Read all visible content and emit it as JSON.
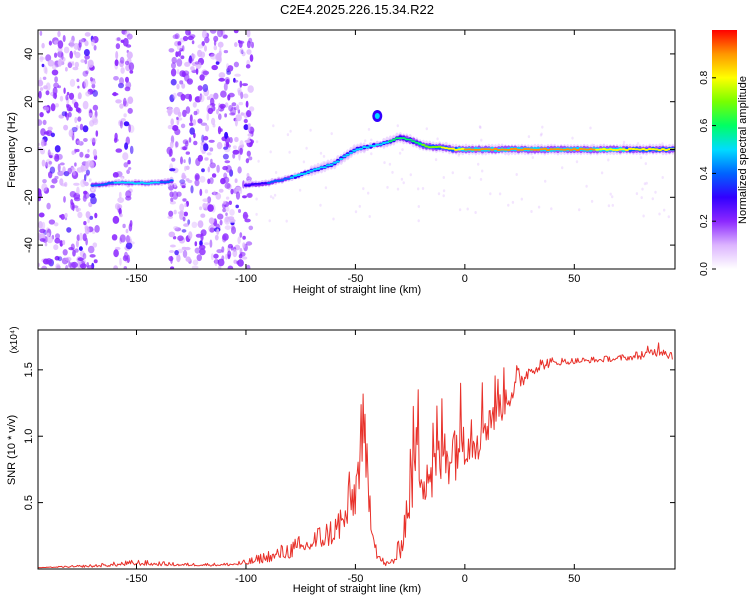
{
  "title": "C2E4.2025.226.15.34.R22",
  "chart_data": [
    {
      "type": "heatmap",
      "xlabel": "Height of straight line (km)",
      "ylabel": "Frequency (Hz)",
      "xlim": [
        -195,
        96
      ],
      "ylim": [
        -50,
        50
      ],
      "xticks": [
        -150,
        -100,
        -50,
        0,
        50
      ],
      "yticks": [
        -40,
        -20,
        0,
        20,
        40
      ],
      "colorbar": {
        "label": "Normalized spectral amplitude",
        "range": [
          0,
          1
        ],
        "ticks": [
          "0.0",
          "0.2",
          "0.4",
          "0.6",
          "0.8"
        ],
        "tick_values": [
          0,
          0.2,
          0.4,
          0.6,
          0.8
        ],
        "colors": [
          "#ffffff",
          "#dcb4ff",
          "#8c28ff",
          "#3200ff",
          "#0064ff",
          "#00dcff",
          "#00ff64",
          "#78ff00",
          "#ffff00",
          "#ff9600",
          "#ff0000"
        ]
      },
      "noise_regions": [
        {
          "x": [
            -195,
            -168
          ]
        },
        {
          "x": [
            -160,
            -152
          ]
        },
        {
          "x": [
            -135,
            -97
          ]
        }
      ],
      "ridge": {
        "x": [
          -170,
          -160,
          -150,
          -140,
          -133,
          -100,
          -90,
          -80,
          -70,
          -60,
          -55,
          -50,
          -45,
          -40,
          -35,
          -30,
          -25,
          -20,
          -15,
          -10,
          -5,
          0,
          10,
          20,
          40,
          60,
          80,
          95
        ],
        "frequency": [
          -15,
          -14,
          -14,
          -14,
          -13,
          -15,
          -14,
          -12,
          -9,
          -6,
          -3,
          0,
          1,
          2,
          3,
          5,
          4,
          2,
          1,
          1,
          0,
          0,
          0,
          0,
          0,
          0,
          0,
          0
        ],
        "amplitude": [
          0.4,
          0.45,
          0.45,
          0.45,
          0.4,
          0.3,
          0.35,
          0.45,
          0.5,
          0.55,
          0.5,
          0.55,
          0.5,
          0.45,
          0.55,
          0.6,
          0.6,
          0.65,
          0.7,
          0.75,
          0.8,
          0.85,
          0.85,
          0.9,
          0.9,
          0.85,
          0.8,
          0.75
        ]
      },
      "blob": {
        "x": -40,
        "frequency": 14
      }
    },
    {
      "type": "line",
      "xlabel": "Height of straight line (km)",
      "ylabel": "SNR (10 * v/v)",
      "scale_label": "(x10⁴)",
      "xlim": [
        -195,
        96
      ],
      "ylim": [
        0,
        1.8
      ],
      "xticks": [
        -150,
        -100,
        -50,
        0,
        50
      ],
      "yticks": [
        0.5,
        1.0,
        1.5
      ],
      "series": [
        {
          "color": "#e8312a",
          "x": [
            -195,
            -170,
            -150,
            -130,
            -110,
            -100,
            -90,
            -80,
            -70,
            -60,
            -55,
            -50,
            -47,
            -45,
            -42,
            -40,
            -37,
            -35,
            -30,
            -25,
            -22,
            -20,
            -15,
            -10,
            -5,
            0,
            5,
            10,
            15,
            20,
            25,
            30,
            40,
            50,
            60,
            70,
            80,
            90,
            95
          ],
          "y": [
            0.01,
            0.02,
            0.04,
            0.03,
            0.03,
            0.04,
            0.08,
            0.12,
            0.18,
            0.25,
            0.35,
            0.55,
            0.95,
            0.7,
            0.3,
            0.1,
            0.04,
            0.03,
            0.1,
            0.55,
            0.9,
            0.75,
            0.7,
            0.85,
            0.9,
            1.0,
            1.0,
            1.1,
            1.2,
            1.3,
            1.4,
            1.5,
            1.55,
            1.56,
            1.57,
            1.58,
            1.6,
            1.65,
            1.6
          ],
          "noise": [
            0.0,
            0.01,
            0.02,
            0.01,
            0.01,
            0.02,
            0.04,
            0.06,
            0.08,
            0.1,
            0.15,
            0.25,
            0.3,
            0.25,
            0.15,
            0.05,
            0.02,
            0.02,
            0.08,
            0.3,
            0.4,
            0.35,
            0.35,
            0.35,
            0.35,
            0.3,
            0.3,
            0.25,
            0.2,
            0.15,
            0.1,
            0.06,
            0.03,
            0.02,
            0.02,
            0.02,
            0.03,
            0.06,
            0.05
          ]
        }
      ]
    }
  ]
}
